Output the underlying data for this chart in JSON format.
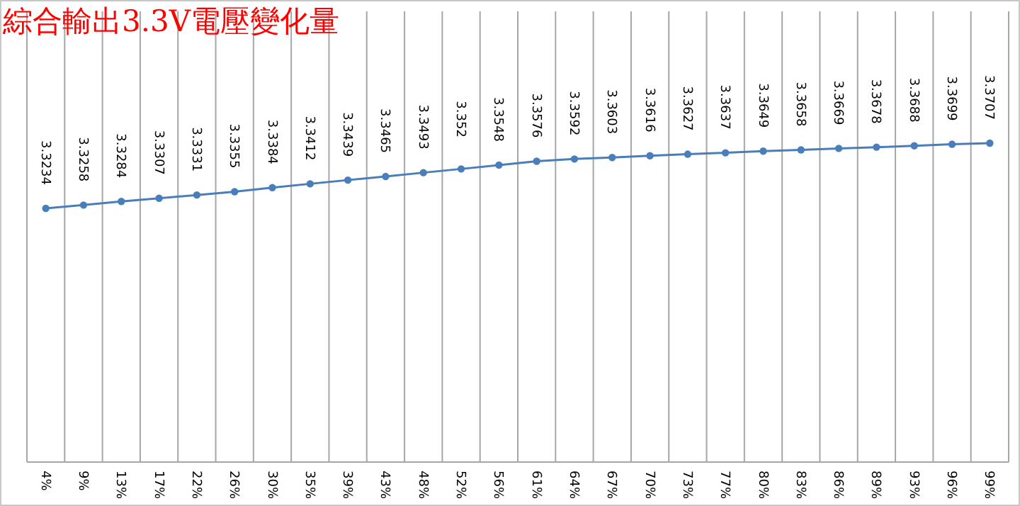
{
  "chart_data": {
    "type": "line",
    "title": "綜合輸出3.3V電壓變化量",
    "categories": [
      "4%",
      "9%",
      "13%",
      "17%",
      "22%",
      "26%",
      "30%",
      "35%",
      "39%",
      "43%",
      "48%",
      "52%",
      "56%",
      "61%",
      "64%",
      "67%",
      "70%",
      "73%",
      "77%",
      "80%",
      "83%",
      "86%",
      "89%",
      "93%",
      "96%",
      "99%"
    ],
    "series": [
      {
        "color": "#4a7ebb",
        "values": [
          3.3234,
          3.3258,
          3.3284,
          3.3307,
          3.3331,
          3.3355,
          3.3384,
          3.3412,
          3.3439,
          3.3465,
          3.3493,
          3.352,
          3.3548,
          3.3576,
          3.3592,
          3.3603,
          3.3616,
          3.3627,
          3.3637,
          3.3649,
          3.3658,
          3.3669,
          3.3678,
          3.3688,
          3.3699,
          3.3707
        ]
      }
    ],
    "data_labels": true,
    "grid": "x",
    "marker": "circle"
  }
}
